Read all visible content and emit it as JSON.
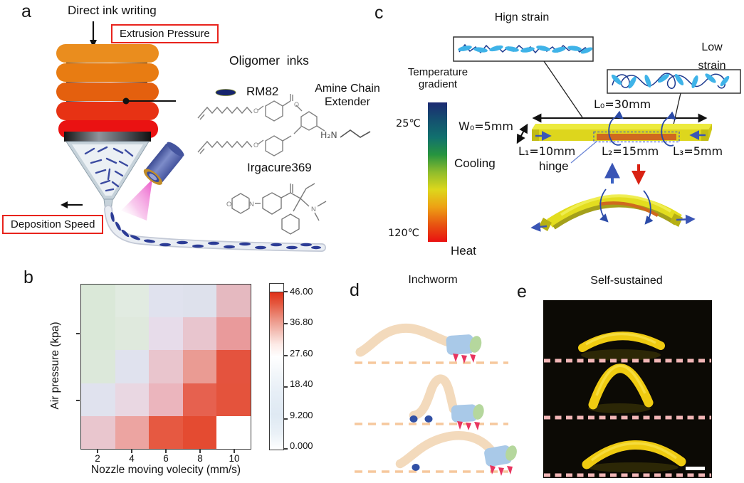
{
  "panel_a": {
    "label": "a",
    "title": "Direct ink writing",
    "extrusion_pressure": "Extrusion Pressure",
    "deposition_speed": "Deposition Speed",
    "oligomer_inks": "Oligomer  inks",
    "rm82": "RM82",
    "amine_line1": "Amine Chain",
    "amine_line2": "Extender",
    "h2n": "H₂N",
    "irgacure": "Irgacure369"
  },
  "panel_b": {
    "label": "b"
  },
  "chart_data": {
    "type": "heatmap",
    "title": "",
    "xlabel": "Nozzle moving volecity (mm/s)",
    "ylabel": "Air pressure (kpa)",
    "x_ticks": [
      "2",
      "4",
      "6",
      "8",
      "10"
    ],
    "y_ticks": [
      "",
      ""
    ],
    "rows": 5,
    "cols": 5,
    "colorbar_tick_labels": [
      "46.00",
      "36.80",
      "27.60",
      "18.40",
      "9.200",
      "0.000"
    ],
    "colorbar_range": [
      0,
      46
    ],
    "cell_colors": [
      [
        "#dae8d8",
        "#e1ebe1",
        "#e0e2ee",
        "#dee1ec",
        "#e5b9c0"
      ],
      [
        "#dae8d8",
        "#dfe9dd",
        "#e7dcea",
        "#e8c5ce",
        "#e99a9b"
      ],
      [
        "#dce8da",
        "#e0e2ee",
        "#e9c5cd",
        "#ea9b93",
        "#e4533e"
      ],
      [
        "#e0e2ee",
        "#e9d7e2",
        "#ebb5bd",
        "#e6614f",
        "#e4533c"
      ],
      [
        "#e9c6ce",
        "#eca4a1",
        "#e65941",
        "#e44b31",
        "#ffffff"
      ]
    ],
    "values_est": [
      [
        null,
        null,
        15,
        15,
        29
      ],
      [
        null,
        null,
        23,
        27,
        34
      ],
      [
        null,
        15,
        28,
        34,
        44
      ],
      [
        15,
        23,
        30,
        43,
        44
      ],
      [
        28,
        33,
        43,
        45,
        0
      ]
    ],
    "legend_position": "right",
    "grid": false
  },
  "panel_c": {
    "label": "c",
    "high_strain": "Hign strain",
    "low_strain_line1": "Low",
    "low_strain_line2": "strain",
    "temp_line1": "Temperature",
    "temp_line2": "gradient",
    "temp_cold": "25℃",
    "temp_hot": "120℃",
    "cooling": "Cooling",
    "heat": "Heat",
    "l0": "L₀=30mm",
    "w0": "W₀=5mm",
    "l1": "L₁=10mm",
    "l2": "L₂=15mm",
    "l3": "L₃=5mm",
    "hinge": "hinge",
    "temp_scale_colors": [
      "#1c2a72",
      "#14506f",
      "#11706e",
      "#27943f",
      "#8fbc2c",
      "#ddd71c",
      "#eda114",
      "#e85511",
      "#e91111"
    ]
  },
  "panel_d": {
    "label": "d",
    "title": "Inchworm"
  },
  "panel_e": {
    "label": "e",
    "title": "Self-sustained"
  },
  "colors": {
    "annotation_red": "#e8231c",
    "mesogen_blue": "#3fb3e8",
    "chain_navy": "#2b4ba8",
    "beam_yellow": "#ddd61d",
    "hinge_orange": "#cf6a1e",
    "worm_body_tan": "#f3dabc",
    "photo_background": "#0c0a05",
    "photo_divider_pink": "#f2b6b6"
  }
}
